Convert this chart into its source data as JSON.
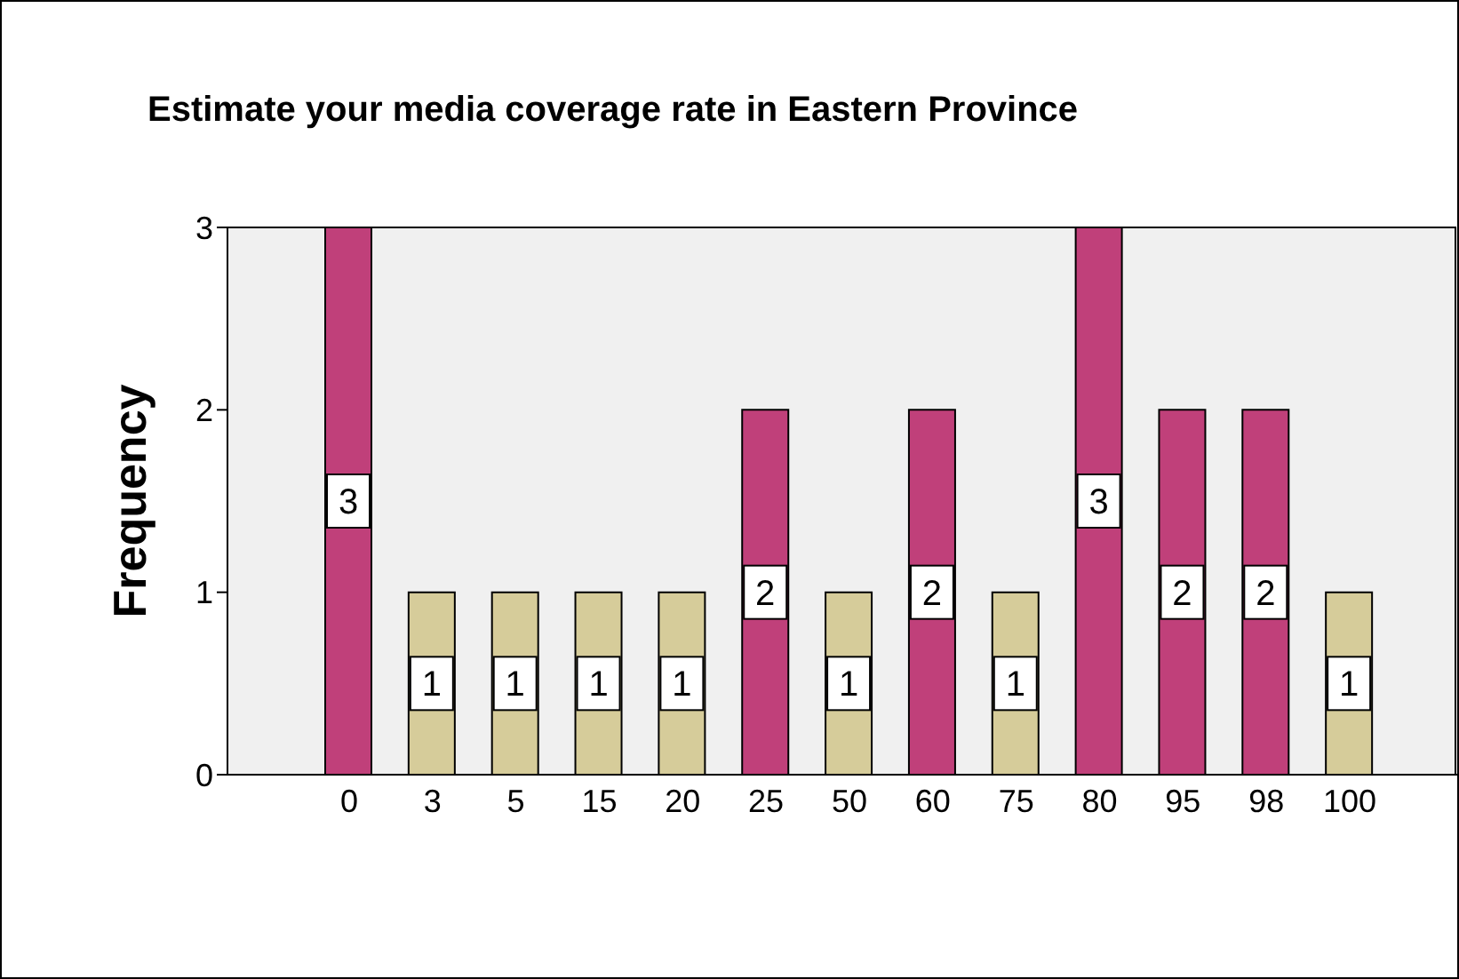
{
  "chart_data": {
    "type": "bar",
    "title": "Estimate your media coverage rate in Eastern Province",
    "ylabel": "Frequency",
    "categories": [
      "0",
      "3",
      "5",
      "15",
      "20",
      "25",
      "50",
      "60",
      "75",
      "80",
      "95",
      "98",
      "100"
    ],
    "values": [
      3,
      1,
      1,
      1,
      1,
      2,
      1,
      2,
      1,
      3,
      2,
      2,
      1
    ],
    "colors": [
      "#c0407a",
      "#d6cc9a",
      "#d6cc9a",
      "#d6cc9a",
      "#d6cc9a",
      "#c0407a",
      "#d6cc9a",
      "#c0407a",
      "#d6cc9a",
      "#c0407a",
      "#c0407a",
      "#c0407a",
      "#d6cc9a"
    ],
    "ylim": [
      0,
      3
    ],
    "yticks": [
      0,
      1,
      2,
      3
    ],
    "data_labels": true,
    "grid": false
  }
}
